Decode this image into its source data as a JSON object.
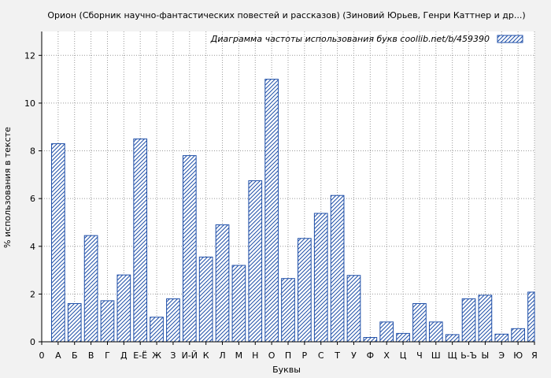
{
  "chart_data": {
    "type": "bar",
    "title": "Орион (Сборник научно-фантастических повестей и рассказов) (Зиновий Юрьев, Генри Каттнер и др...)",
    "xlabel": "Буквы",
    "ylabel": "% использования в тексте",
    "legend": "Диаграмма частоты использования букв  coollib.net/b/459390",
    "legend_position": "top-right",
    "ylim": [
      0,
      13
    ],
    "yticks": [
      0,
      2,
      4,
      6,
      8,
      10,
      12
    ],
    "grid": true,
    "x_tick_labels": [
      "0",
      "А",
      "Б",
      "В",
      "Г",
      "Д",
      "Е-Ё",
      "Ж",
      "З",
      "И-Й",
      "К",
      "Л",
      "М",
      "Н",
      "О",
      "П",
      "Р",
      "С",
      "Т",
      "У",
      "Ф",
      "Х",
      "Ц",
      "Ч",
      "Ш",
      "Щ",
      "Ь-Ъ",
      "Ы",
      "Э",
      "Ю",
      "Я"
    ],
    "categories": [
      "А",
      "Б",
      "В",
      "Г",
      "Д",
      "Е-Ё",
      "Ж",
      "З",
      "И-Й",
      "К",
      "Л",
      "М",
      "Н",
      "О",
      "П",
      "Р",
      "С",
      "Т",
      "У",
      "Ф",
      "Х",
      "Ц",
      "Ч",
      "Ш",
      "Щ",
      "Ь-Ъ",
      "Ы",
      "Э",
      "Ю",
      "Я"
    ],
    "values": [
      8.3,
      1.6,
      4.45,
      1.72,
      2.8,
      8.5,
      1.03,
      1.8,
      7.8,
      3.55,
      4.9,
      3.2,
      6.75,
      11.0,
      2.65,
      4.33,
      5.38,
      6.13,
      2.78,
      0.18,
      0.83,
      0.35,
      1.6,
      0.83,
      0.3,
      1.8,
      1.95,
      0.32,
      0.55,
      2.08
    ],
    "colors": {
      "bar_stroke": "#1f4fa8",
      "hatch": "#1f4fa8",
      "plot_bg": "#ffffff",
      "page_bg": "#f2f2f2"
    }
  }
}
